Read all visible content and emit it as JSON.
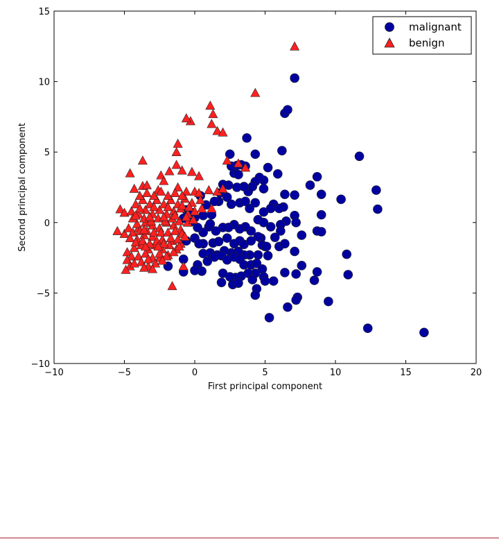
{
  "chart_data": {
    "type": "scatter",
    "title": "",
    "xlabel": "First principal component",
    "ylabel": "Second principal component",
    "xlim": [
      -10,
      20
    ],
    "ylim": [
      -10,
      15
    ],
    "xticks": [
      -10,
      -5,
      0,
      5,
      10,
      15,
      20
    ],
    "yticks": [
      -10,
      -5,
      0,
      5,
      10,
      15
    ],
    "xtick_labels": [
      "−10",
      "−5",
      "0",
      "5",
      "10",
      "15",
      "20"
    ],
    "ytick_labels": [
      "−10",
      "−5",
      "0",
      "5",
      "10",
      "15"
    ],
    "grid": false,
    "legend_position": "top-right",
    "series": [
      {
        "name": "malignant",
        "marker": "circle",
        "color": "#0000a0",
        "points": [
          [
            16.3,
            -7.8
          ],
          [
            12.3,
            -7.5
          ],
          [
            11.7,
            4.7
          ],
          [
            12.9,
            2.3
          ],
          [
            13.0,
            0.95
          ],
          [
            10.4,
            1.65
          ],
          [
            10.8,
            -2.25
          ],
          [
            10.9,
            -3.7
          ],
          [
            9.5,
            -5.6
          ],
          [
            9.0,
            2.0
          ],
          [
            9.0,
            0.55
          ],
          [
            8.7,
            3.25
          ],
          [
            8.7,
            -0.6
          ],
          [
            9.0,
            -0.65
          ],
          [
            8.5,
            -4.1
          ],
          [
            8.7,
            -3.5
          ],
          [
            8.2,
            2.65
          ],
          [
            7.6,
            -3.05
          ],
          [
            7.6,
            -0.9
          ],
          [
            7.1,
            10.25
          ],
          [
            6.4,
            7.75
          ],
          [
            6.6,
            8.0
          ],
          [
            7.1,
            1.95
          ],
          [
            7.1,
            0.5
          ],
          [
            7.2,
            0.0
          ],
          [
            7.1,
            -2.05
          ],
          [
            7.2,
            -3.65
          ],
          [
            7.3,
            -5.3
          ],
          [
            7.2,
            -5.5
          ],
          [
            6.6,
            -6.0
          ],
          [
            6.4,
            -3.55
          ],
          [
            5.3,
            -6.75
          ],
          [
            6.2,
            5.1
          ],
          [
            5.9,
            3.45
          ],
          [
            6.4,
            2.0
          ],
          [
            6.3,
            1.1
          ],
          [
            5.6,
            1.3
          ],
          [
            6.0,
            1.0
          ],
          [
            6.5,
            0.1
          ],
          [
            5.4,
            1.0
          ],
          [
            4.9,
            0.75
          ],
          [
            5.2,
            3.9
          ],
          [
            4.9,
            3.0
          ],
          [
            4.6,
            3.2
          ],
          [
            4.9,
            2.4
          ],
          [
            4.3,
            2.9
          ],
          [
            4.3,
            4.85
          ],
          [
            3.7,
            6.0
          ],
          [
            2.5,
            4.85
          ],
          [
            3.6,
            4.0
          ],
          [
            3.3,
            4.1
          ],
          [
            3.0,
            4.05
          ],
          [
            2.8,
            3.5
          ],
          [
            2.6,
            4.0
          ],
          [
            3.1,
            3.4
          ],
          [
            3.8,
            2.2
          ],
          [
            4.1,
            2.55
          ],
          [
            3.5,
            2.55
          ],
          [
            3.0,
            2.5
          ],
          [
            2.4,
            2.65
          ],
          [
            2.0,
            2.7
          ],
          [
            1.8,
            2.1
          ],
          [
            2.3,
            1.8
          ],
          [
            1.7,
            1.5
          ],
          [
            2.6,
            1.3
          ],
          [
            3.2,
            1.4
          ],
          [
            3.6,
            1.5
          ],
          [
            3.9,
            1.0
          ],
          [
            4.3,
            1.4
          ],
          [
            4.5,
            0.2
          ],
          [
            4.9,
            0.0
          ],
          [
            5.4,
            -0.3
          ],
          [
            6.1,
            -0.15
          ],
          [
            5.7,
            -1.05
          ],
          [
            6.1,
            -0.6
          ],
          [
            6.0,
            -1.7
          ],
          [
            6.4,
            -1.5
          ],
          [
            5.0,
            -1.7
          ],
          [
            4.7,
            -1.1
          ],
          [
            4.0,
            -0.6
          ],
          [
            3.6,
            -0.3
          ],
          [
            3.2,
            -0.45
          ],
          [
            2.8,
            -0.15
          ],
          [
            2.4,
            -0.35
          ],
          [
            2.0,
            -0.35
          ],
          [
            1.5,
            -0.6
          ],
          [
            1.0,
            -0.3
          ],
          [
            0.6,
            -0.7
          ],
          [
            0.2,
            -0.35
          ],
          [
            0.0,
            -1.1
          ],
          [
            -0.6,
            -1.3
          ],
          [
            0.6,
            -1.5
          ],
          [
            1.3,
            -1.45
          ],
          [
            1.7,
            -1.35
          ],
          [
            2.3,
            -1.1
          ],
          [
            2.8,
            -1.5
          ],
          [
            3.2,
            -1.3
          ],
          [
            3.5,
            -1.55
          ],
          [
            4.0,
            -1.3
          ],
          [
            4.5,
            -1.0
          ],
          [
            4.8,
            -1.6
          ],
          [
            5.1,
            -1.7
          ],
          [
            5.2,
            -2.35
          ],
          [
            4.5,
            -2.3
          ],
          [
            3.9,
            -2.3
          ],
          [
            3.5,
            -2.3
          ],
          [
            3.1,
            -2.05
          ],
          [
            2.6,
            -2.15
          ],
          [
            2.1,
            -2.0
          ],
          [
            1.6,
            -2.3
          ],
          [
            1.1,
            -2.15
          ],
          [
            0.6,
            -2.2
          ],
          [
            0.9,
            -2.75
          ],
          [
            1.4,
            -2.45
          ],
          [
            1.9,
            -2.35
          ],
          [
            2.3,
            -2.65
          ],
          [
            2.8,
            -2.45
          ],
          [
            3.2,
            -2.6
          ],
          [
            3.5,
            -3.0
          ],
          [
            4.0,
            -3.0
          ],
          [
            4.4,
            -2.9
          ],
          [
            4.8,
            -3.3
          ],
          [
            4.9,
            -3.85
          ],
          [
            4.3,
            -3.6
          ],
          [
            3.8,
            -3.6
          ],
          [
            3.3,
            -3.8
          ],
          [
            2.9,
            -3.9
          ],
          [
            2.5,
            -3.85
          ],
          [
            2.0,
            -3.6
          ],
          [
            1.9,
            -4.25
          ],
          [
            2.7,
            -4.4
          ],
          [
            3.1,
            -4.3
          ],
          [
            4.1,
            -4.05
          ],
          [
            4.4,
            -4.7
          ],
          [
            4.3,
            -5.15
          ],
          [
            5.0,
            -4.15
          ],
          [
            5.6,
            -4.15
          ],
          [
            0.2,
            -3.0
          ],
          [
            0.5,
            -3.45
          ],
          [
            0.0,
            -3.4
          ],
          [
            -0.8,
            -3.5
          ],
          [
            -1.9,
            -3.1
          ],
          [
            -0.8,
            -2.6
          ],
          [
            -0.6,
            0.9
          ],
          [
            -0.3,
            0.05
          ],
          [
            0.0,
            0.35
          ],
          [
            0.6,
            0.5
          ],
          [
            1.2,
            0.55
          ],
          [
            0.8,
            1.25
          ],
          [
            1.4,
            1.5
          ],
          [
            0.4,
            1.9
          ],
          [
            -0.2,
            0.7
          ],
          [
            1.1,
            -0.1
          ],
          [
            -0.8,
            0.3
          ],
          [
            0.3,
            -1.5
          ]
        ]
      },
      {
        "name": "benign",
        "marker": "triangle",
        "color": "#ff2020",
        "points": [
          [
            7.1,
            12.5
          ],
          [
            4.3,
            9.2
          ],
          [
            1.1,
            8.3
          ],
          [
            1.3,
            7.7
          ],
          [
            1.2,
            7.0
          ],
          [
            -0.3,
            7.2
          ],
          [
            -0.6,
            7.4
          ],
          [
            1.6,
            6.5
          ],
          [
            2.0,
            6.4
          ],
          [
            -1.2,
            5.6
          ],
          [
            -1.3,
            5.0
          ],
          [
            -3.7,
            4.4
          ],
          [
            -4.6,
            3.5
          ],
          [
            -1.3,
            4.1
          ],
          [
            -0.9,
            3.7
          ],
          [
            -1.8,
            3.65
          ],
          [
            -0.2,
            3.6
          ],
          [
            0.3,
            3.3
          ],
          [
            2.3,
            4.4
          ],
          [
            3.1,
            4.2
          ],
          [
            3.6,
            3.9
          ],
          [
            -2.4,
            3.35
          ],
          [
            -2.2,
            2.95
          ],
          [
            -3.7,
            2.6
          ],
          [
            -3.4,
            2.65
          ],
          [
            -4.3,
            2.4
          ],
          [
            -2.6,
            2.3
          ],
          [
            -1.2,
            2.5
          ],
          [
            -0.6,
            2.2
          ],
          [
            0.0,
            2.2
          ],
          [
            0.3,
            2.1
          ],
          [
            1.0,
            2.3
          ],
          [
            1.6,
            2.2
          ],
          [
            2.0,
            2.4
          ],
          [
            -5.3,
            0.95
          ],
          [
            -5.0,
            0.7
          ],
          [
            -5.5,
            -0.6
          ],
          [
            -5.0,
            -0.8
          ],
          [
            -4.7,
            -0.4
          ],
          [
            -4.4,
            -0.7
          ],
          [
            -4.8,
            -2.1
          ],
          [
            -4.5,
            -2.4
          ],
          [
            -4.8,
            -2.65
          ],
          [
            -4.6,
            -3.1
          ],
          [
            -4.9,
            -3.35
          ],
          [
            -3.3,
            -3.1
          ],
          [
            -2.5,
            -2.5
          ],
          [
            -1.9,
            -2.3
          ],
          [
            -1.6,
            -4.5
          ],
          [
            -0.8,
            -3.1
          ],
          [
            -1.0,
            -1.5
          ],
          [
            -1.6,
            -1.3
          ],
          [
            -2.3,
            -1.2
          ],
          [
            -3.0,
            -1.0
          ],
          [
            -3.6,
            -0.9
          ],
          [
            -4.1,
            -1.2
          ],
          [
            -4.0,
            -0.4
          ],
          [
            -3.5,
            0.0
          ],
          [
            -3.0,
            -0.2
          ],
          [
            -2.5,
            -0.4
          ],
          [
            -2.0,
            0.0
          ],
          [
            -1.5,
            -0.2
          ],
          [
            -1.0,
            -0.5
          ],
          [
            -0.5,
            0.0
          ],
          [
            0.5,
            1.0
          ],
          [
            0.0,
            0.8
          ],
          [
            -0.5,
            0.6
          ],
          [
            -1.0,
            1.0
          ],
          [
            -1.5,
            0.8
          ],
          [
            -2.0,
            0.6
          ],
          [
            -2.5,
            0.9
          ],
          [
            -3.0,
            0.6
          ],
          [
            -3.5,
            0.9
          ],
          [
            -4.0,
            0.6
          ],
          [
            -4.5,
            0.8
          ],
          [
            -4.2,
            1.3
          ],
          [
            -3.7,
            1.6
          ],
          [
            -3.2,
            1.3
          ],
          [
            -2.7,
            1.6
          ],
          [
            -2.2,
            1.3
          ],
          [
            -1.7,
            1.6
          ],
          [
            -1.2,
            1.3
          ],
          [
            -0.7,
            1.7
          ],
          [
            -0.2,
            1.4
          ],
          [
            0.4,
            1.6
          ],
          [
            -3.9,
            1.9
          ],
          [
            -3.4,
            2.1
          ],
          [
            -2.9,
            1.9
          ],
          [
            -2.4,
            2.2
          ],
          [
            -1.9,
            1.9
          ],
          [
            -1.4,
            2.1
          ],
          [
            -0.9,
            1.9
          ],
          [
            -4.3,
            -1.8
          ],
          [
            -3.8,
            -1.6
          ],
          [
            -3.3,
            -1.9
          ],
          [
            -2.8,
            -1.6
          ],
          [
            -2.3,
            -1.9
          ],
          [
            -1.8,
            -1.6
          ],
          [
            -1.3,
            -1.9
          ],
          [
            -4.0,
            -2.4
          ],
          [
            -3.5,
            -2.2
          ],
          [
            -3.0,
            -2.5
          ],
          [
            -2.5,
            -2.2
          ],
          [
            -2.0,
            -2.4
          ],
          [
            -1.5,
            -2.1
          ],
          [
            -3.8,
            -2.8
          ],
          [
            -3.3,
            -2.6
          ],
          [
            -2.8,
            -2.9
          ],
          [
            -2.3,
            -2.7
          ],
          [
            -4.3,
            -2.9
          ],
          [
            -3.6,
            -3.2
          ],
          [
            -3.0,
            -3.3
          ],
          [
            -4.6,
            -1.1
          ],
          [
            -4.1,
            -0.1
          ],
          [
            -3.6,
            0.3
          ],
          [
            -3.1,
            0.1
          ],
          [
            -2.6,
            0.3
          ],
          [
            -2.1,
            0.1
          ],
          [
            -1.6,
            0.3
          ],
          [
            -1.1,
            0.1
          ],
          [
            -0.6,
            0.4
          ],
          [
            -0.1,
            0.2
          ],
          [
            -4.4,
            0.3
          ],
          [
            -3.9,
            -0.6
          ],
          [
            -3.4,
            -0.6
          ],
          [
            -2.9,
            -0.7
          ],
          [
            -2.4,
            -0.7
          ],
          [
            -1.9,
            -0.7
          ],
          [
            -1.4,
            -0.6
          ],
          [
            -0.9,
            -0.8
          ],
          [
            -4.2,
            -1.4
          ],
          [
            -3.7,
            -1.3
          ],
          [
            -3.2,
            -1.5
          ],
          [
            -2.7,
            -1.3
          ],
          [
            -2.2,
            -1.5
          ],
          [
            -1.7,
            -1.1
          ],
          [
            -1.2,
            -1.2
          ],
          [
            -0.7,
            -1.0
          ],
          [
            -3.9,
            1.0
          ],
          [
            -2.9,
            1.1
          ],
          [
            -1.9,
            1.1
          ],
          [
            -0.9,
            1.2
          ],
          [
            -0.4,
            1.1
          ],
          [
            -3.6,
            -0.5
          ],
          [
            -1.4,
            0.5
          ],
          [
            -2.2,
            0.4
          ],
          [
            -3.2,
            0.4
          ],
          [
            -4.2,
            0.5
          ],
          [
            -1.1,
            -1.7
          ],
          [
            -2.6,
            -1.7
          ],
          [
            -3.5,
            -1.7
          ],
          [
            1.2,
            1.0
          ]
        ]
      }
    ]
  },
  "colors": {
    "malignant": "#0000a0",
    "benign": "#ff2020",
    "marker_stroke": "#222222"
  }
}
